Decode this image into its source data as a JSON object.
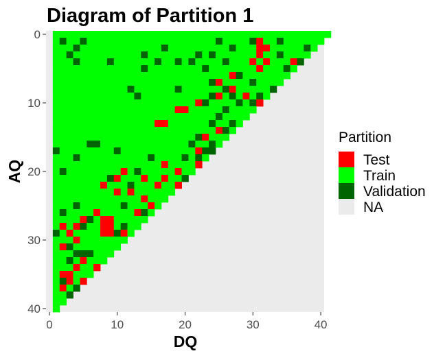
{
  "chart_data": {
    "type": "heatmap",
    "title": "Diagram of Partition 1",
    "xlabel": "DQ",
    "ylabel": "AQ",
    "xlim": [
      -0.5,
      40.5
    ],
    "ylim": [
      -0.5,
      40.5
    ],
    "y_reversed": true,
    "x_ticks": [
      0,
      10,
      20,
      30,
      40
    ],
    "y_ticks": [
      0,
      10,
      20,
      30,
      40
    ],
    "x_tick_labels": [
      "0",
      "10",
      "20",
      "30",
      "40"
    ],
    "y_tick_labels": [
      "0",
      "10",
      "20",
      "30",
      "40"
    ],
    "cell_region": "cells with DQ >= 1, AQ >= 0 and DQ + AQ <= 41",
    "default_category": "Train",
    "legend": {
      "title": "Partition",
      "position": "right",
      "entries": [
        {
          "label": "Test",
          "color": "#ff0000"
        },
        {
          "label": "Train",
          "color": "#00ff00"
        },
        {
          "label": "Validation",
          "color": "#006400"
        },
        {
          "label": "NA",
          "color": "#ebebeb"
        }
      ]
    },
    "panel_background": "#ebebeb",
    "grid": false,
    "test_cells": [
      [
        31,
        1
      ],
      [
        31,
        2
      ],
      [
        32,
        2
      ],
      [
        31,
        3
      ],
      [
        30,
        4
      ],
      [
        32,
        4
      ],
      [
        31,
        5
      ],
      [
        36,
        4
      ],
      [
        35,
        5
      ],
      [
        27,
        6
      ],
      [
        37,
        6
      ],
      [
        25,
        7
      ],
      [
        27,
        8
      ],
      [
        25,
        9
      ],
      [
        29,
        9
      ],
      [
        31,
        10
      ],
      [
        26,
        11
      ],
      [
        22,
        10
      ],
      [
        19,
        11
      ],
      [
        20,
        11
      ],
      [
        16,
        13
      ],
      [
        17,
        13
      ],
      [
        25,
        14
      ],
      [
        23,
        15
      ],
      [
        28,
        15
      ],
      [
        26,
        16
      ],
      [
        22,
        17
      ],
      [
        20,
        18
      ],
      [
        17,
        19
      ],
      [
        22,
        19
      ],
      [
        11,
        20
      ],
      [
        19,
        20
      ],
      [
        24,
        20
      ],
      [
        10,
        21
      ],
      [
        14,
        21
      ],
      [
        17,
        21
      ],
      [
        16,
        22
      ],
      [
        8,
        22
      ],
      [
        19,
        22
      ],
      [
        20,
        22
      ],
      [
        10,
        23
      ],
      [
        12,
        23
      ],
      [
        14,
        24
      ],
      [
        15,
        25
      ],
      [
        13,
        26
      ],
      [
        14,
        26
      ],
      [
        7,
        26
      ],
      [
        8,
        27
      ],
      [
        9,
        27
      ],
      [
        15,
        27
      ],
      [
        5,
        27
      ],
      [
        8,
        28
      ],
      [
        9,
        28
      ],
      [
        2,
        28
      ],
      [
        4,
        28
      ],
      [
        3,
        29
      ],
      [
        10,
        29
      ],
      [
        11,
        29
      ],
      [
        8,
        29
      ],
      [
        9,
        29
      ],
      [
        4,
        30
      ],
      [
        2,
        31
      ],
      [
        3,
        31
      ],
      [
        4,
        32
      ],
      [
        5,
        33
      ],
      [
        4,
        34
      ],
      [
        2,
        35
      ],
      [
        3,
        35
      ],
      [
        7,
        34
      ],
      [
        3,
        36
      ],
      [
        2,
        37
      ],
      [
        5,
        36
      ]
    ],
    "validation_cells": [
      [
        2,
        1
      ],
      [
        5,
        1
      ],
      [
        25,
        1
      ],
      [
        30,
        1
      ],
      [
        34,
        1
      ],
      [
        4,
        2
      ],
      [
        17,
        2
      ],
      [
        27,
        2
      ],
      [
        38,
        2
      ],
      [
        3,
        3
      ],
      [
        14,
        3
      ],
      [
        22,
        3
      ],
      [
        24,
        3
      ],
      [
        34,
        3
      ],
      [
        4,
        4
      ],
      [
        9,
        4
      ],
      [
        16,
        4
      ],
      [
        19,
        4
      ],
      [
        21,
        4
      ],
      [
        26,
        4
      ],
      [
        37,
        4
      ],
      [
        14,
        5
      ],
      [
        23,
        5
      ],
      [
        35,
        5
      ],
      [
        28,
        6
      ],
      [
        24,
        7
      ],
      [
        30,
        7
      ],
      [
        12,
        8
      ],
      [
        19,
        8
      ],
      [
        26,
        8
      ],
      [
        33,
        8
      ],
      [
        35,
        8
      ],
      [
        13,
        9
      ],
      [
        24,
        9
      ],
      [
        27,
        9
      ],
      [
        31,
        9
      ],
      [
        23,
        10
      ],
      [
        28,
        10
      ],
      [
        30,
        10
      ],
      [
        32,
        10
      ],
      [
        26,
        11
      ],
      [
        31,
        11
      ],
      [
        25,
        12
      ],
      [
        24,
        13
      ],
      [
        27,
        13
      ],
      [
        26,
        14
      ],
      [
        22,
        15
      ],
      [
        24,
        16
      ],
      [
        21,
        16
      ],
      [
        6,
        16
      ],
      [
        7,
        16
      ],
      [
        1,
        17
      ],
      [
        10,
        17
      ],
      [
        23,
        17
      ],
      [
        24,
        17
      ],
      [
        4,
        18
      ],
      [
        15,
        18
      ],
      [
        20,
        18
      ],
      [
        22,
        18
      ],
      [
        2,
        20
      ],
      [
        13,
        20
      ],
      [
        9,
        21
      ],
      [
        20,
        21
      ],
      [
        12,
        22
      ],
      [
        4,
        25
      ],
      [
        11,
        25
      ],
      [
        18,
        25
      ],
      [
        2,
        26
      ],
      [
        14,
        26
      ],
      [
        6,
        27
      ],
      [
        11,
        28
      ],
      [
        5,
        28
      ],
      [
        1,
        29
      ],
      [
        10,
        29
      ],
      [
        3,
        31
      ],
      [
        5,
        32
      ],
      [
        4,
        32
      ],
      [
        6,
        32
      ],
      [
        3,
        33
      ],
      [
        2,
        36
      ],
      [
        3,
        38
      ],
      [
        4,
        37
      ]
    ]
  }
}
